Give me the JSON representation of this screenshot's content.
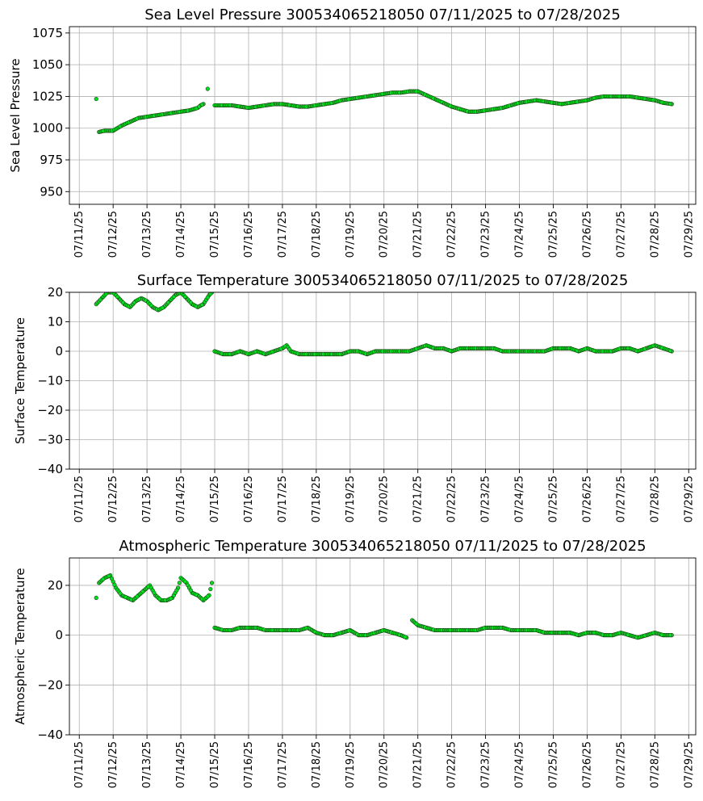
{
  "chart_data": [
    {
      "type": "scatter",
      "title": "Sea Level Pressure 300534065218050  07/11/2025 to 07/28/2025",
      "xlabel": "",
      "ylabel": "Sea Level Pressure",
      "xlim": [
        "07/10/2025 17:00",
        "07/29/2025 05:00"
      ],
      "ylim": [
        940,
        1080
      ],
      "yticks": [
        950,
        975,
        1000,
        1025,
        1050,
        1075
      ],
      "xticks": [
        "07/11/25",
        "07/12/25",
        "07/13/25",
        "07/14/25",
        "07/15/25",
        "07/16/25",
        "07/17/25",
        "07/18/25",
        "07/19/25",
        "07/20/25",
        "07/21/25",
        "07/22/25",
        "07/23/25",
        "07/24/25",
        "07/25/25",
        "07/26/25",
        "07/27/25",
        "07/28/25",
        "07/29/25"
      ],
      "grid": true,
      "marker_color": "#00e020",
      "series": [
        {
          "x": [
            "07/11/25 12:00",
            "07/11/25 14:00",
            "07/11/25 18:00",
            "07/12/25 00:00",
            "07/12/25 06:00",
            "07/12/25 12:00",
            "07/12/25 18:00",
            "07/13/25 00:00",
            "07/13/25 06:00",
            "07/13/25 12:00",
            "07/13/25 18:00",
            "07/14/25 00:00",
            "07/14/25 06:00",
            "07/14/25 12:00",
            "07/14/25 14:00",
            "07/14/25 16:00",
            "07/14/25 19:00",
            "07/15/25 00:00",
            "07/15/25 06:00",
            "07/15/25 12:00",
            "07/15/25 18:00",
            "07/16/25 00:00",
            "07/16/25 06:00",
            "07/16/25 12:00",
            "07/16/25 18:00",
            "07/17/25 00:00",
            "07/17/25 06:00",
            "07/17/25 12:00",
            "07/17/25 18:00",
            "07/18/25 00:00",
            "07/18/25 06:00",
            "07/18/25 12:00",
            "07/18/25 18:00",
            "07/19/25 00:00",
            "07/19/25 06:00",
            "07/19/25 12:00",
            "07/19/25 18:00",
            "07/20/25 00:00",
            "07/20/25 06:00",
            "07/20/25 12:00",
            "07/20/25 18:00",
            "07/21/25 00:00",
            "07/21/25 06:00",
            "07/21/25 12:00",
            "07/21/25 18:00",
            "07/22/25 00:00",
            "07/22/25 06:00",
            "07/22/25 12:00",
            "07/22/25 18:00",
            "07/23/25 00:00",
            "07/23/25 06:00",
            "07/23/25 12:00",
            "07/23/25 18:00",
            "07/24/25 00:00",
            "07/24/25 06:00",
            "07/24/25 12:00",
            "07/24/25 18:00",
            "07/25/25 00:00",
            "07/25/25 06:00",
            "07/25/25 12:00",
            "07/25/25 18:00",
            "07/26/25 00:00",
            "07/26/25 06:00",
            "07/26/25 12:00",
            "07/26/25 18:00",
            "07/27/25 00:00",
            "07/27/25 06:00",
            "07/27/25 12:00",
            "07/27/25 18:00",
            "07/28/25 00:00",
            "07/28/25 06:00",
            "07/28/25 12:00"
          ],
          "y": [
            1023,
            997,
            998,
            998,
            1002,
            1005,
            1008,
            1009,
            1010,
            1011,
            1012,
            1013,
            1014,
            1016,
            1018,
            1019,
            1031,
            1018,
            1018,
            1018,
            1017,
            1016,
            1017,
            1018,
            1019,
            1019,
            1018,
            1017,
            1017,
            1018,
            1019,
            1020,
            1022,
            1023,
            1024,
            1025,
            1026,
            1027,
            1028,
            1028,
            1029,
            1029,
            1026,
            1023,
            1020,
            1017,
            1015,
            1013,
            1013,
            1014,
            1015,
            1016,
            1018,
            1020,
            1021,
            1022,
            1021,
            1020,
            1019,
            1020,
            1021,
            1022,
            1024,
            1025,
            1025,
            1025,
            1025,
            1024,
            1023,
            1022,
            1020,
            1019
          ]
        }
      ]
    },
    {
      "type": "scatter",
      "title": "Surface Temperature 300534065218050  07/11/2025 to 07/28/2025",
      "xlabel": "",
      "ylabel": "Surface Temperature",
      "xlim": [
        "07/10/2025 17:00",
        "07/29/2025 05:00"
      ],
      "ylim": [
        -40,
        20
      ],
      "yticks": [
        -40,
        -30,
        -20,
        -10,
        0,
        10,
        20
      ],
      "xticks": [
        "07/11/25",
        "07/12/25",
        "07/13/25",
        "07/14/25",
        "07/15/25",
        "07/16/25",
        "07/17/25",
        "07/18/25",
        "07/19/25",
        "07/20/25",
        "07/21/25",
        "07/22/25",
        "07/23/25",
        "07/24/25",
        "07/25/25",
        "07/26/25",
        "07/27/25",
        "07/28/25",
        "07/29/25"
      ],
      "grid": true,
      "marker_color": "#00e020",
      "series": [
        {
          "x": [
            "07/11/25 12:00",
            "07/11/25 16:00",
            "07/11/25 20:00",
            "07/12/25 00:00",
            "07/12/25 04:00",
            "07/12/25 08:00",
            "07/12/25 12:00",
            "07/12/25 16:00",
            "07/12/25 20:00",
            "07/13/25 00:00",
            "07/13/25 04:00",
            "07/13/25 08:00",
            "07/13/25 12:00",
            "07/13/25 16:00",
            "07/13/25 20:00",
            "07/14/25 00:00",
            "07/14/25 04:00",
            "07/14/25 08:00",
            "07/14/25 12:00",
            "07/14/25 16:00",
            "07/14/25 20:00",
            "07/14/25 22:00",
            "07/15/25 00:00",
            "07/15/25 06:00",
            "07/15/25 12:00",
            "07/15/25 18:00",
            "07/16/25 00:00",
            "07/16/25 06:00",
            "07/16/25 12:00",
            "07/16/25 18:00",
            "07/17/25 00:00",
            "07/17/25 03:00",
            "07/17/25 06:00",
            "07/17/25 12:00",
            "07/17/25 18:00",
            "07/18/25 00:00",
            "07/18/25 06:00",
            "07/18/25 12:00",
            "07/18/25 18:00",
            "07/19/25 00:00",
            "07/19/25 06:00",
            "07/19/25 12:00",
            "07/19/25 18:00",
            "07/20/25 00:00",
            "07/20/25 06:00",
            "07/20/25 12:00",
            "07/20/25 18:00",
            "07/21/25 00:00",
            "07/21/25 06:00",
            "07/21/25 12:00",
            "07/21/25 18:00",
            "07/22/25 00:00",
            "07/22/25 06:00",
            "07/22/25 12:00",
            "07/22/25 18:00",
            "07/23/25 00:00",
            "07/23/25 06:00",
            "07/23/25 12:00",
            "07/23/25 18:00",
            "07/24/25 00:00",
            "07/24/25 06:00",
            "07/24/25 12:00",
            "07/24/25 18:00",
            "07/25/25 00:00",
            "07/25/25 06:00",
            "07/25/25 12:00",
            "07/25/25 18:00",
            "07/26/25 00:00",
            "07/26/25 06:00",
            "07/26/25 12:00",
            "07/26/25 18:00",
            "07/27/25 00:00",
            "07/27/25 06:00",
            "07/27/25 12:00",
            "07/27/25 18:00",
            "07/28/25 00:00",
            "07/28/25 06:00",
            "07/28/25 12:00"
          ],
          "y": [
            16,
            18,
            20,
            20,
            18,
            16,
            15,
            17,
            18,
            17,
            15,
            14,
            15,
            17,
            19,
            20,
            18,
            16,
            15,
            16,
            19,
            20,
            0,
            -1,
            -1,
            0,
            -1,
            0,
            -1,
            0,
            1,
            2,
            0,
            -1,
            -1,
            -1,
            -1,
            -1,
            -1,
            0,
            0,
            -1,
            0,
            0,
            0,
            0,
            0,
            1,
            2,
            1,
            1,
            0,
            1,
            1,
            1,
            1,
            1,
            0,
            0,
            0,
            0,
            0,
            0,
            1,
            1,
            1,
            0,
            1,
            0,
            0,
            0,
            1,
            1,
            0,
            1,
            2,
            1,
            0
          ]
        }
      ]
    },
    {
      "type": "scatter",
      "title": "Atmospheric Temperature 300534065218050  07/11/2025 to 07/28/2025",
      "xlabel": "",
      "ylabel": "Atmospheric Temperature",
      "xlim": [
        "07/10/2025 17:00",
        "07/29/2025 05:00"
      ],
      "ylim": [
        -40,
        31
      ],
      "yticks": [
        -40,
        -20,
        0,
        20
      ],
      "xticks": [
        "07/11/25",
        "07/12/25",
        "07/13/25",
        "07/14/25",
        "07/15/25",
        "07/16/25",
        "07/17/25",
        "07/18/25",
        "07/19/25",
        "07/20/25",
        "07/21/25",
        "07/22/25",
        "07/23/25",
        "07/24/25",
        "07/25/25",
        "07/26/25",
        "07/27/25",
        "07/28/25",
        "07/29/25"
      ],
      "grid": true,
      "marker_color": "#00e020",
      "series": [
        {
          "x": [
            "07/11/25 12:00",
            "07/11/25 14:00",
            "07/11/25 18:00",
            "07/11/25 22:00",
            "07/12/25 02:00",
            "07/12/25 06:00",
            "07/12/25 10:00",
            "07/12/25 14:00",
            "07/12/25 18:00",
            "07/12/25 22:00",
            "07/13/25 02:00",
            "07/13/25 06:00",
            "07/13/25 10:00",
            "07/13/25 14:00",
            "07/13/25 18:00",
            "07/13/25 22:00",
            "07/14/25 00:00",
            "07/14/25 04:00",
            "07/14/25 08:00",
            "07/14/25 12:00",
            "07/14/25 16:00",
            "07/14/25 20:00",
            "07/14/25 22:00",
            "07/15/25 00:00",
            "07/15/25 06:00",
            "07/15/25 12:00",
            "07/15/25 18:00",
            "07/16/25 00:00",
            "07/16/25 06:00",
            "07/16/25 12:00",
            "07/16/25 18:00",
            "07/17/25 00:00",
            "07/17/25 06:00",
            "07/17/25 12:00",
            "07/17/25 18:00",
            "07/18/25 00:00",
            "07/18/25 06:00",
            "07/18/25 12:00",
            "07/18/25 18:00",
            "07/19/25 00:00",
            "07/19/25 06:00",
            "07/19/25 12:00",
            "07/19/25 18:00",
            "07/20/25 00:00",
            "07/20/25 06:00",
            "07/20/25 12:00",
            "07/20/25 16:00",
            "07/20/25 20:00",
            "07/21/25 00:00",
            "07/21/25 06:00",
            "07/21/25 12:00",
            "07/21/25 18:00",
            "07/22/25 00:00",
            "07/22/25 06:00",
            "07/22/25 12:00",
            "07/22/25 18:00",
            "07/23/25 00:00",
            "07/23/25 06:00",
            "07/23/25 12:00",
            "07/23/25 18:00",
            "07/24/25 00:00",
            "07/24/25 06:00",
            "07/24/25 12:00",
            "07/24/25 18:00",
            "07/25/25 00:00",
            "07/25/25 06:00",
            "07/25/25 12:00",
            "07/25/25 18:00",
            "07/26/25 00:00",
            "07/26/25 06:00",
            "07/26/25 12:00",
            "07/26/25 18:00",
            "07/27/25 00:00",
            "07/27/25 06:00",
            "07/27/25 12:00",
            "07/27/25 18:00",
            "07/28/25 00:00",
            "07/28/25 06:00",
            "07/28/25 12:00"
          ],
          "y": [
            15,
            21,
            23,
            24,
            19,
            16,
            15,
            14,
            16,
            18,
            20,
            16,
            14,
            14,
            15,
            19,
            23,
            21,
            17,
            16,
            14,
            16,
            21,
            3,
            2,
            2,
            3,
            3,
            3,
            2,
            2,
            2,
            2,
            2,
            3,
            1,
            0,
            0,
            1,
            2,
            0,
            0,
            1,
            2,
            1,
            0,
            -1,
            6,
            4,
            3,
            2,
            2,
            2,
            2,
            2,
            2,
            3,
            3,
            3,
            2,
            2,
            2,
            2,
            1,
            1,
            1,
            1,
            0,
            1,
            1,
            0,
            0,
            1,
            0,
            -1,
            0,
            1,
            0,
            0
          ]
        }
      ]
    }
  ]
}
